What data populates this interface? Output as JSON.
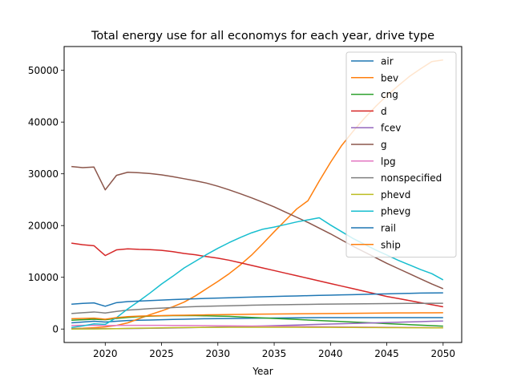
{
  "chart_data": {
    "type": "line",
    "title": "Total energy use for all economys for each year, drive type",
    "xlabel": "Year",
    "ylabel": "",
    "xlim": [
      2016.35,
      2051.65
    ],
    "ylim": [
      -2600,
      54600
    ],
    "x_ticks": [
      2020,
      2025,
      2030,
      2035,
      2040,
      2045,
      2050
    ],
    "y_ticks": [
      0,
      10000,
      20000,
      30000,
      40000,
      50000
    ],
    "x_tick_labels": [
      "2020",
      "2025",
      "2030",
      "2035",
      "2040",
      "2045",
      "2050"
    ],
    "y_tick_labels": [
      "0",
      "10000",
      "20000",
      "30000",
      "40000",
      "50000"
    ],
    "grid": false,
    "legend_position": "upper-right",
    "x": [
      2017,
      2018,
      2019,
      2020,
      2021,
      2022,
      2023,
      2024,
      2025,
      2026,
      2027,
      2028,
      2029,
      2030,
      2031,
      2032,
      2033,
      2034,
      2035,
      2036,
      2037,
      2038,
      2039,
      2040,
      2041,
      2042,
      2043,
      2044,
      2045,
      2046,
      2047,
      2048,
      2049,
      2050
    ],
    "series": [
      {
        "name": "air",
        "color": "#1f77b4",
        "values": [
          1200,
          1350,
          1500,
          1350,
          1500,
          1650,
          1700,
          1750,
          1800,
          1850,
          1900,
          1950,
          2000,
          2020,
          2040,
          2060,
          2080,
          2100,
          2120,
          2140,
          2160,
          2180,
          2200,
          2200,
          2200,
          2200,
          2200,
          2200,
          2200,
          2200,
          2200,
          2200,
          2200,
          2200
        ]
      },
      {
        "name": "bev",
        "color": "#ff7f0e",
        "values": [
          100,
          150,
          250,
          400,
          700,
          1200,
          2000,
          2800,
          3500,
          4300,
          5200,
          6400,
          7800,
          9200,
          10700,
          12400,
          14300,
          16500,
          18800,
          21000,
          23200,
          24800,
          28600,
          32200,
          35500,
          38200,
          40700,
          43000,
          45100,
          47000,
          48800,
          50300,
          51700,
          52000
        ]
      },
      {
        "name": "cng",
        "color": "#2ca02c",
        "values": [
          1700,
          1800,
          1900,
          1800,
          2050,
          2250,
          2400,
          2500,
          2550,
          2600,
          2600,
          2600,
          2550,
          2500,
          2450,
          2350,
          2250,
          2150,
          2050,
          1950,
          1850,
          1750,
          1650,
          1550,
          1450,
          1350,
          1250,
          1150,
          1050,
          950,
          850,
          750,
          650,
          550
        ]
      },
      {
        "name": "d",
        "color": "#d62728",
        "values": [
          16600,
          16300,
          16100,
          14200,
          15300,
          15500,
          15400,
          15350,
          15200,
          14950,
          14600,
          14350,
          14000,
          13700,
          13300,
          12800,
          12300,
          11800,
          11300,
          10800,
          10300,
          9800,
          9300,
          8800,
          8300,
          7800,
          7300,
          6800,
          6300,
          5900,
          5500,
          5100,
          4700,
          4300
        ]
      },
      {
        "name": "fcev",
        "color": "#9467bd",
        "values": [
          50,
          60,
          70,
          70,
          80,
          100,
          120,
          150,
          180,
          210,
          250,
          290,
          330,
          380,
          430,
          480,
          540,
          600,
          660,
          720,
          780,
          840,
          900,
          960,
          1020,
          1080,
          1140,
          1200,
          1260,
          1320,
          1380,
          1440,
          1500,
          1550
        ]
      },
      {
        "name": "g",
        "color": "#8c564b",
        "values": [
          31400,
          31200,
          31300,
          26900,
          29700,
          30300,
          30200,
          30050,
          29800,
          29450,
          29050,
          28650,
          28200,
          27600,
          26900,
          26150,
          25350,
          24500,
          23600,
          22600,
          21600,
          20600,
          19500,
          18400,
          17200,
          16000,
          14900,
          13800,
          12700,
          11700,
          10700,
          9700,
          8700,
          7800
        ]
      },
      {
        "name": "lpg",
        "color": "#e377c2",
        "values": [
          700,
          720,
          740,
          650,
          700,
          720,
          720,
          720,
          710,
          700,
          690,
          680,
          660,
          640,
          620,
          600,
          580,
          560,
          540,
          520,
          500,
          480,
          460,
          440,
          420,
          400,
          380,
          360,
          340,
          320,
          300,
          280,
          260,
          250
        ]
      },
      {
        "name": "nonspecified",
        "color": "#7f7f7f",
        "values": [
          3000,
          3150,
          3300,
          3100,
          3400,
          3650,
          3800,
          3950,
          4050,
          4150,
          4250,
          4330,
          4400,
          4450,
          4500,
          4550,
          4600,
          4650,
          4680,
          4710,
          4740,
          4770,
          4800,
          4820,
          4840,
          4860,
          4880,
          4900,
          4920,
          4940,
          4950,
          4960,
          4970,
          4980
        ]
      },
      {
        "name": "phevd",
        "color": "#bcbd22",
        "values": [
          0,
          10,
          20,
          40,
          80,
          130,
          170,
          200,
          230,
          260,
          280,
          300,
          320,
          330,
          340,
          345,
          350,
          350,
          350,
          345,
          340,
          335,
          330,
          320,
          310,
          300,
          290,
          280,
          270,
          260,
          250,
          240,
          230,
          220
        ]
      },
      {
        "name": "phevg",
        "color": "#17becf",
        "values": [
          300,
          600,
          1000,
          900,
          2200,
          3900,
          5400,
          7000,
          8700,
          10200,
          11800,
          13100,
          14400,
          15600,
          16700,
          17700,
          18600,
          19300,
          19700,
          20200,
          20700,
          21100,
          21500,
          20100,
          18800,
          17500,
          16400,
          15300,
          14300,
          13300,
          12400,
          11500,
          10700,
          9500
        ]
      },
      {
        "name": "rail",
        "color": "#1f77b4",
        "values": [
          4800,
          4950,
          5050,
          4400,
          5100,
          5300,
          5400,
          5500,
          5600,
          5700,
          5780,
          5850,
          5920,
          5990,
          6050,
          6110,
          6170,
          6230,
          6290,
          6350,
          6400,
          6450,
          6500,
          6550,
          6600,
          6650,
          6700,
          6750,
          6800,
          6850,
          6900,
          6950,
          6980,
          7000
        ]
      },
      {
        "name": "ship",
        "color": "#ff7f0e",
        "values": [
          2000,
          2050,
          2100,
          1900,
          2200,
          2400,
          2500,
          2550,
          2600,
          2650,
          2680,
          2710,
          2740,
          2770,
          2800,
          2830,
          2860,
          2880,
          2900,
          2920,
          2940,
          2960,
          2980,
          3000,
          3020,
          3040,
          3060,
          3080,
          3100,
          3110,
          3120,
          3130,
          3140,
          3150
        ]
      }
    ]
  }
}
